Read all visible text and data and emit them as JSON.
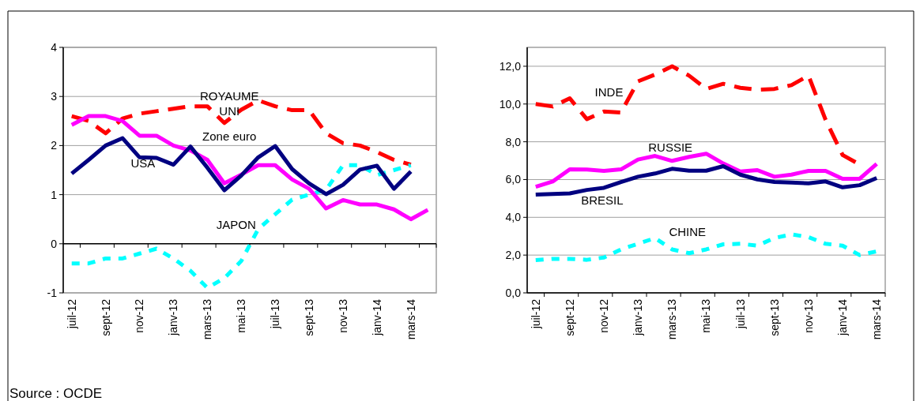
{
  "chart_data": [
    {
      "type": "line",
      "categories": [
        "juil-12",
        null,
        "sept-12",
        null,
        "nov-12",
        null,
        "janv-13",
        null,
        "mars-13",
        null,
        "mai-13",
        null,
        "juil-13",
        null,
        "sept-13",
        null,
        "nov-13",
        null,
        "janv-14",
        null,
        "mars-14",
        null
      ],
      "ylim": [
        -1,
        4
      ],
      "yticks": [
        -1,
        0,
        1,
        2,
        3,
        4
      ],
      "grid": "y",
      "marker": "none",
      "annotations": [
        "Source : OCDE"
      ],
      "series": [
        {
          "name": "ROYAUME UNI",
          "color": "#ff0000",
          "line_style": "dashed",
          "values": [
            2.6,
            2.5,
            2.25,
            2.55,
            2.65,
            2.7,
            2.75,
            2.8,
            2.8,
            2.46,
            2.73,
            2.92,
            2.8,
            2.72,
            2.72,
            2.25,
            2.05,
            2.0,
            1.87,
            1.71,
            1.61,
            null
          ]
        },
        {
          "name": "JAPON",
          "color": "#00ffff",
          "line_style": "dotted",
          "values": [
            -0.4,
            -0.4,
            -0.3,
            -0.3,
            -0.2,
            -0.1,
            -0.3,
            -0.55,
            -0.9,
            -0.7,
            -0.35,
            0.3,
            0.6,
            0.9,
            1.0,
            1.1,
            1.6,
            1.6,
            1.4,
            1.5,
            1.6,
            null
          ]
        },
        {
          "name": "Zone euro",
          "color": "#ff00ff",
          "line_style": "solid",
          "values": [
            2.42,
            2.6,
            2.6,
            2.5,
            2.2,
            2.2,
            2.0,
            1.9,
            1.71,
            1.23,
            1.41,
            1.6,
            1.6,
            1.31,
            1.12,
            0.72,
            0.89,
            0.8,
            0.8,
            0.7,
            0.5,
            0.69
          ]
        },
        {
          "name": "USA",
          "color": "#000080",
          "line_style": "solid",
          "values": [
            1.43,
            1.71,
            2.0,
            2.15,
            1.76,
            1.75,
            1.61,
            1.98,
            1.55,
            1.09,
            1.39,
            1.76,
            1.99,
            1.52,
            1.23,
            1.01,
            1.2,
            1.51,
            1.59,
            1.12,
            1.47,
            null
          ]
        }
      ]
    },
    {
      "type": "line",
      "categories": [
        "juil-12",
        null,
        "sept-12",
        null,
        "nov-12",
        null,
        "janv-13",
        null,
        "mars-13",
        null,
        "mai-13",
        null,
        "juil-13",
        null,
        "sept-13",
        null,
        "nov-13",
        null,
        "janv-14",
        null,
        "mars-14"
      ],
      "ylim": [
        0,
        13
      ],
      "yticks": [
        {
          "value": 0,
          "label": "0,0"
        },
        {
          "value": 2,
          "label": "2,0"
        },
        {
          "value": 4,
          "label": "4,0"
        },
        {
          "value": 6,
          "label": "6,0"
        },
        {
          "value": 8,
          "label": "8,0"
        },
        {
          "value": 10,
          "label": "10,0"
        },
        {
          "value": 12,
          "label": "12,0"
        }
      ],
      "grid": "y",
      "marker": "none",
      "series": [
        {
          "name": "INDE",
          "color": "#ff0000",
          "line_style": "dashed",
          "values": [
            10.0,
            9.87,
            10.3,
            9.2,
            9.6,
            9.55,
            11.2,
            11.56,
            12.0,
            11.5,
            10.8,
            11.07,
            10.86,
            10.76,
            10.8,
            11.0,
            11.5,
            9.17,
            7.3,
            6.8,
            null
          ]
        },
        {
          "name": "CHINE",
          "color": "#00ffff",
          "line_style": "dotted",
          "values": [
            1.73,
            1.8,
            1.8,
            1.75,
            1.87,
            2.3,
            2.6,
            2.9,
            2.3,
            2.1,
            2.3,
            2.57,
            2.6,
            2.5,
            2.9,
            3.1,
            2.95,
            2.6,
            2.5,
            2.0,
            2.2
          ]
        },
        {
          "name": "RUSSIE",
          "color": "#ff00ff",
          "line_style": "solid",
          "values": [
            5.62,
            5.9,
            6.54,
            6.53,
            6.46,
            6.54,
            7.06,
            7.25,
            6.99,
            7.2,
            7.37,
            6.85,
            6.43,
            6.5,
            6.15,
            6.26,
            6.46,
            6.46,
            6.04,
            6.04,
            6.83
          ]
        },
        {
          "name": "BRESIL",
          "color": "#000080",
          "line_style": "solid",
          "values": [
            5.2,
            5.24,
            5.27,
            5.45,
            5.56,
            5.87,
            6.15,
            6.32,
            6.57,
            6.47,
            6.47,
            6.71,
            6.26,
            6.01,
            5.87,
            5.84,
            5.8,
            5.9,
            5.59,
            5.7,
            6.08
          ]
        }
      ]
    }
  ]
}
